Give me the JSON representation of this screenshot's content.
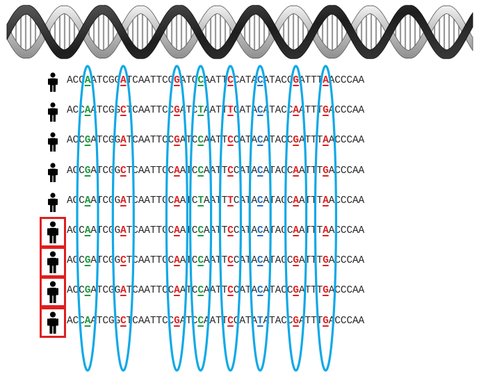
{
  "sequences": [
    {
      "id": "p1",
      "highlighted": false,
      "parts": [
        "ACC",
        "A",
        "ATCGG",
        "A",
        "TCAATTCC",
        "G",
        "ATC",
        "C",
        "AATT",
        "C",
        "CATA",
        "C",
        "ATACC",
        "G",
        "ATTT",
        "A",
        "ACCCAA"
      ]
    },
    {
      "id": "p2",
      "highlighted": false,
      "parts": [
        "ACC",
        "A",
        "ATCGG",
        "C",
        "TCAATTCC",
        "G",
        "ATC",
        "T",
        "AATT",
        "T",
        "CATA",
        "C",
        "ATACC",
        "A",
        "ATTT",
        "G",
        "ACCCAA"
      ]
    },
    {
      "id": "p3",
      "highlighted": false,
      "parts": [
        "ACC",
        "G",
        "ATCGG",
        "A",
        "TCAATTCC",
        "G",
        "ATC",
        "C",
        "AATT",
        "C",
        "CATA",
        "C",
        "ATACC",
        "G",
        "ATTT",
        "A",
        "ACCCAA"
      ]
    },
    {
      "id": "p4",
      "highlighted": false,
      "parts": [
        "ACC",
        "G",
        "ATCGG",
        "C",
        "TCAATTCC",
        "A",
        "ATC",
        "C",
        "AATT",
        "C",
        "CATA",
        "C",
        "ATACC",
        "A",
        "ATTT",
        "G",
        "ACCCAA"
      ]
    },
    {
      "id": "p5",
      "highlighted": false,
      "parts": [
        "ACC",
        "A",
        "ATCGG",
        "A",
        "TCAATTCC",
        "A",
        "ATC",
        "T",
        "AATT",
        "T",
        "CATA",
        "C",
        "ATACC",
        "A",
        "ATTT",
        "A",
        "ACCCAA"
      ]
    },
    {
      "id": "p6",
      "highlighted": true,
      "parts": [
        "ACC",
        "A",
        "ATCGG",
        "A",
        "TCAATTCC",
        "A",
        "ATC",
        "C",
        "AATT",
        "C",
        "CATA",
        "C",
        "ATACC",
        "A",
        "ATTT",
        "A",
        "ACCCAA"
      ]
    },
    {
      "id": "p7",
      "highlighted": true,
      "parts": [
        "ACC",
        "G",
        "ATCGG",
        "C",
        "TCAATTCC",
        "A",
        "ATC",
        "C",
        "AATT",
        "C",
        "CATA",
        "C",
        "ATACC",
        "G",
        "ATTT",
        "G",
        "ACCCAA"
      ]
    },
    {
      "id": "p8",
      "highlighted": true,
      "parts": [
        "ACC",
        "G",
        "ATCGG",
        "A",
        "TCAATTCC",
        "A",
        "ATC",
        "C",
        "AATT",
        "C",
        "CATA",
        "C",
        "ATACC",
        "G",
        "ATTT",
        "G",
        "ACCCAA"
      ]
    },
    {
      "id": "p9",
      "highlighted": true,
      "parts": [
        "ACC",
        "A",
        "ATCGG",
        "C",
        "TCAATTCC",
        "G",
        "ATC",
        "C",
        "AATT",
        "C",
        "CATA",
        "T",
        "ATACC",
        "G",
        "ATTT",
        "G",
        "ACCCAA"
      ]
    }
  ],
  "snp_colors": [
    "green",
    "red",
    "red",
    "green",
    "red",
    "blue",
    "red",
    "red"
  ],
  "colors": {
    "green": "#1a9a3c",
    "red": "#e01f1f",
    "blue": "#1f6fbf",
    "oval": "#12a9e6",
    "highlight_box": "#e01f1f",
    "person": "#000000"
  },
  "icons": {
    "person": "person-icon",
    "helix": "dna-helix-icon"
  }
}
